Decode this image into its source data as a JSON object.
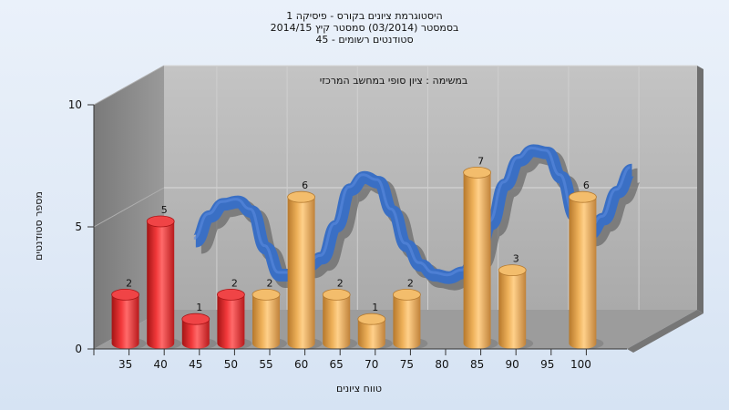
{
  "chart_data": {
    "type": "bar",
    "title_lines": [
      "היסטוגרמת ציונים בקורס - פיסיקה 1",
      "בסמסטר  (03/2014)  סמסטר קיץ 2014/15",
      "סטודנטים רשומים - 45"
    ],
    "note": "במשימה : ציון סופי במחשב המרכזי",
    "xlabel": "טווח ציונים",
    "ylabel": "מספר סטודנטים",
    "categories": [
      "35",
      "40",
      "45",
      "50",
      "55",
      "60",
      "65",
      "70",
      "75",
      "80",
      "85",
      "90",
      "95",
      "100"
    ],
    "bars": [
      {
        "x": 35,
        "value": 2,
        "color": "red"
      },
      {
        "x": 40,
        "value": 5,
        "color": "red"
      },
      {
        "x": 45,
        "value": 1,
        "color": "red"
      },
      {
        "x": 50,
        "value": 2,
        "color": "red"
      },
      {
        "x": 55,
        "value": 2,
        "color": "orange"
      },
      {
        "x": 60,
        "value": 6,
        "color": "orange"
      },
      {
        "x": 65,
        "value": 2,
        "color": "orange"
      },
      {
        "x": 70,
        "value": 1,
        "color": "orange"
      },
      {
        "x": 75,
        "value": 2,
        "color": "orange"
      },
      {
        "x": 85,
        "value": 7,
        "color": "orange"
      },
      {
        "x": 90,
        "value": 3,
        "color": "orange"
      },
      {
        "x": 100,
        "value": 6,
        "color": "orange"
      }
    ],
    "curve": {
      "x": [
        40,
        42,
        44,
        46,
        48,
        50,
        52,
        54,
        56,
        58,
        60,
        62,
        64,
        66,
        68,
        70,
        72,
        74,
        76,
        78,
        80,
        82,
        84,
        86,
        88,
        90,
        92,
        94,
        96,
        98,
        100,
        102
      ],
      "y": [
        3.7,
        4.7,
        5.2,
        5.3,
        4.9,
        3.4,
        2.3,
        2.3,
        2.7,
        3.0,
        4.3,
        5.8,
        6.3,
        6.1,
        4.9,
        3.5,
        2.7,
        2.3,
        2.2,
        2.4,
        3.0,
        4.4,
        6.0,
        7.0,
        7.4,
        7.3,
        6.3,
        4.7,
        4.0,
        4.6,
        5.7,
        6.6
      ]
    },
    "yticks": [
      0,
      5,
      10
    ],
    "ylim": [
      0,
      10
    ],
    "grid": true,
    "colors": {
      "red": "#e8262a",
      "orange": "#e9a84e",
      "curve": "#3a6fc4",
      "back_wall": "#b8b8b8",
      "side_wall": "#8c8c8c",
      "floor": "#9a9a9a"
    }
  }
}
